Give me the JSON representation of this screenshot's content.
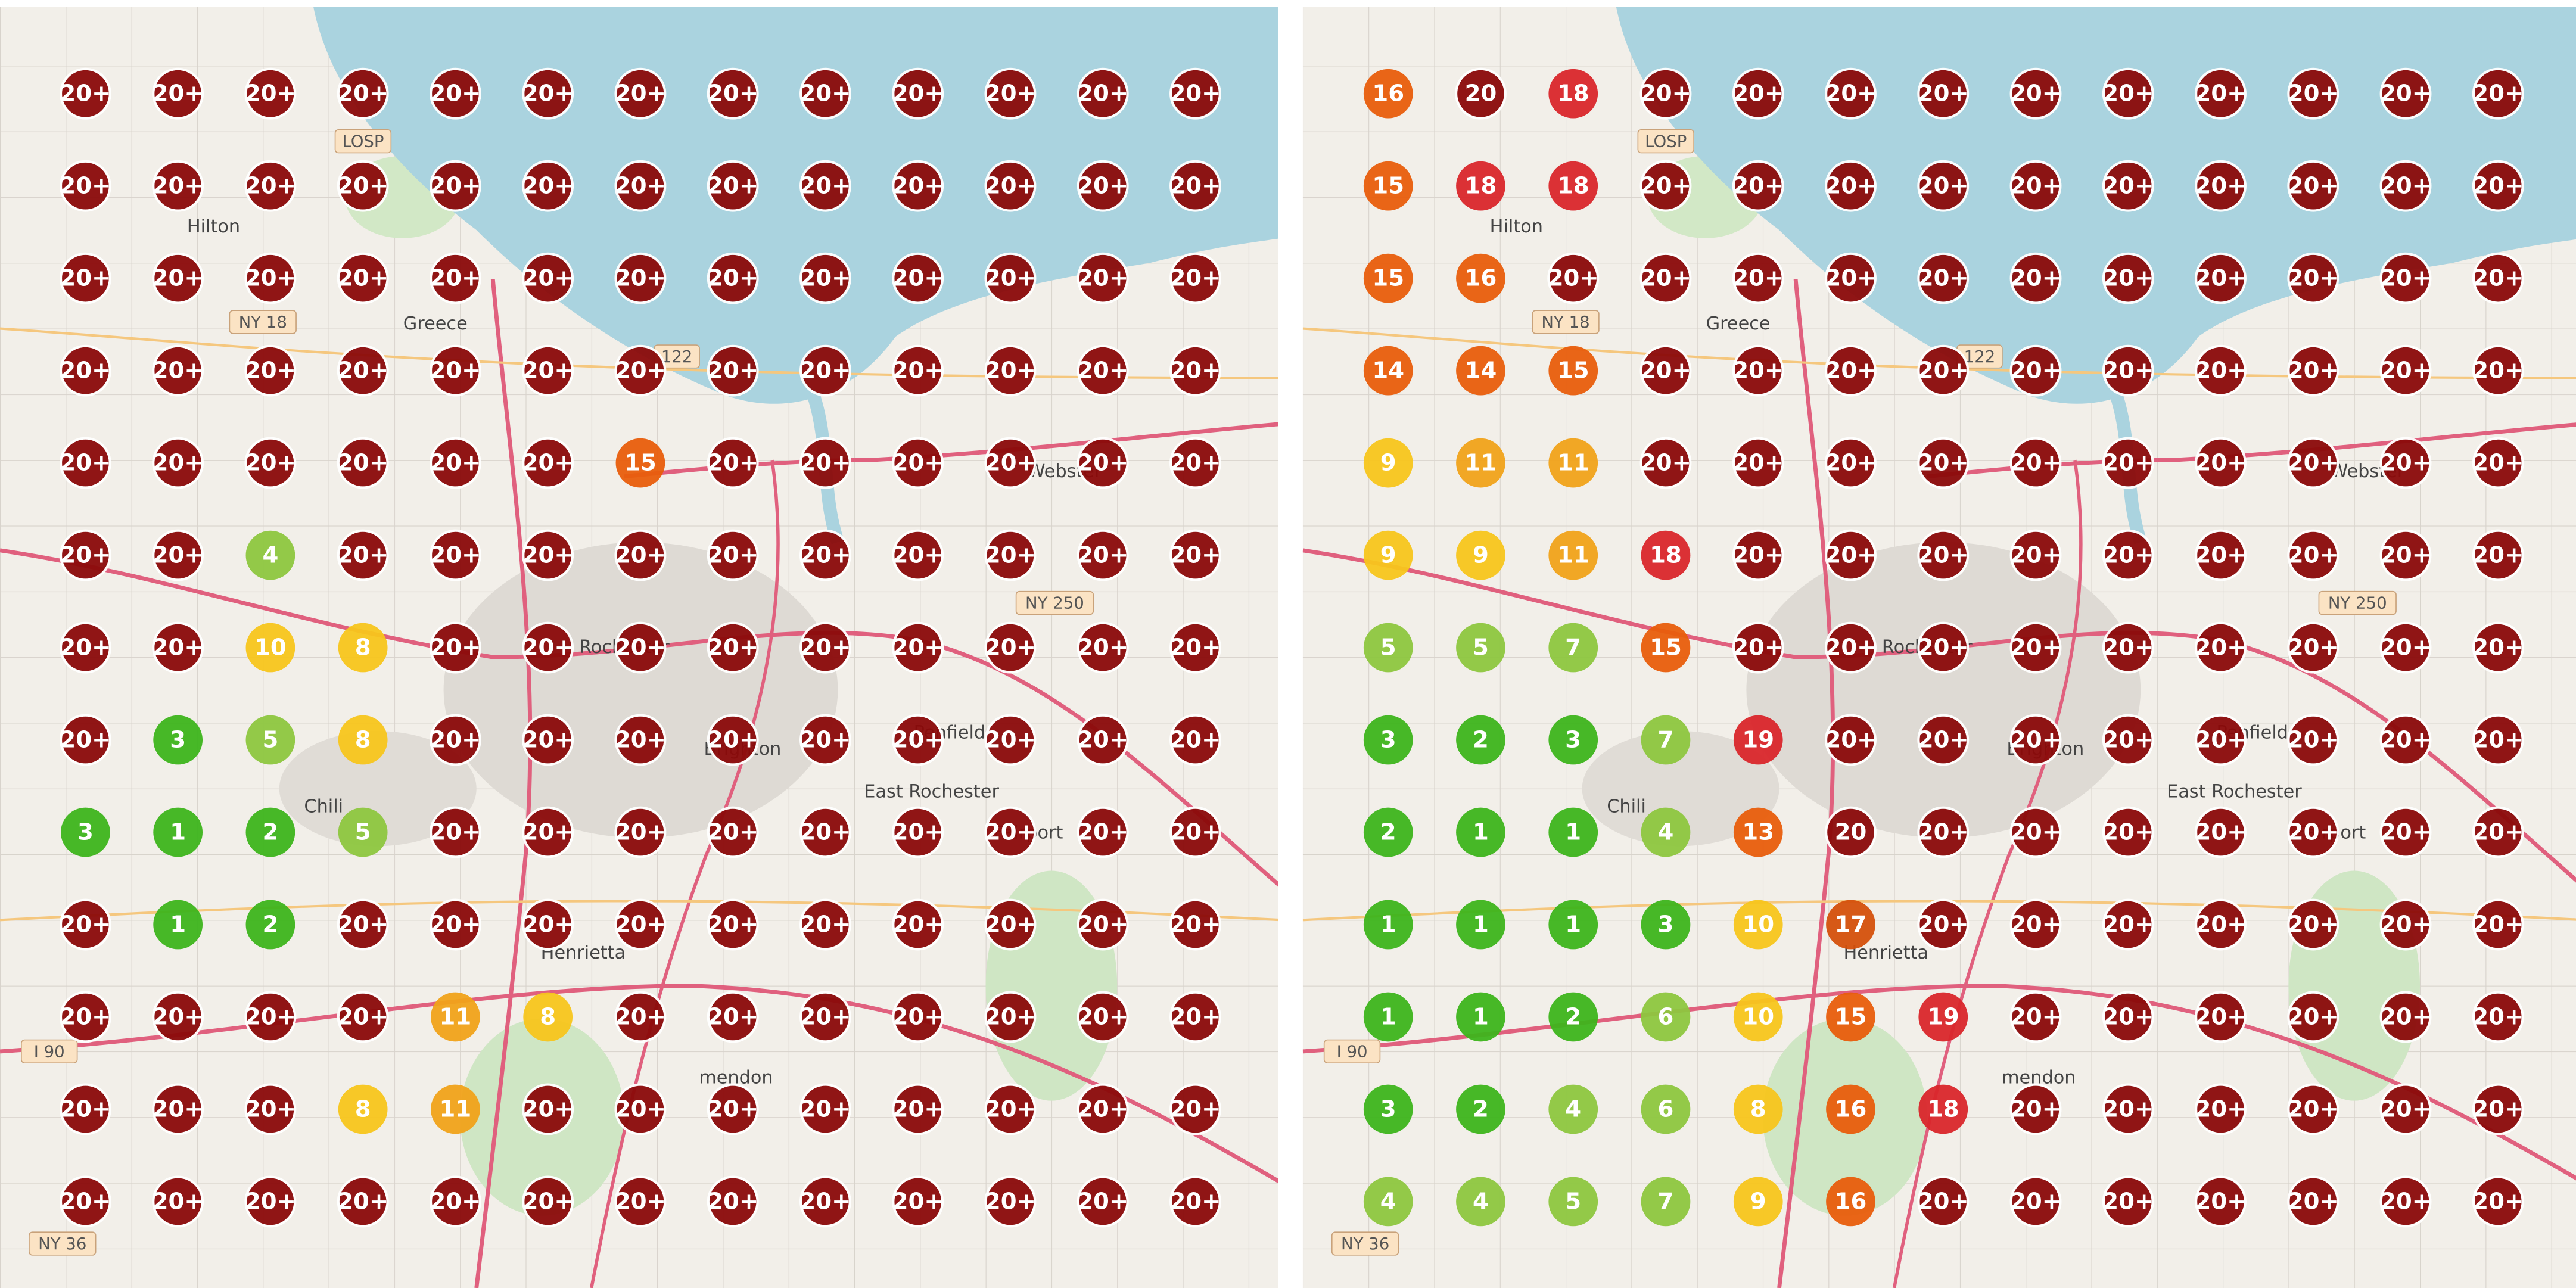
{
  "panels": [
    {
      "markers": [
        [
          "20+",
          "20+",
          "20+",
          "20+",
          "20+",
          "20+",
          "20+",
          "20+",
          "20+",
          "20+",
          "20+",
          "20+",
          "20+"
        ],
        [
          "20+",
          "20+",
          "20+",
          "20+",
          "20+",
          "20+",
          "20+",
          "20+",
          "20+",
          "20+",
          "20+",
          "20+",
          "20+"
        ],
        [
          "20+",
          "20+",
          "20+",
          "20+",
          "20+",
          "20+",
          "20+",
          "20+",
          "20+",
          "20+",
          "20+",
          "20+",
          "20+"
        ],
        [
          "20+",
          "20+",
          "20+",
          "20+",
          "20+",
          "20+",
          "20+",
          "20+",
          "20+",
          "20+",
          "20+",
          "20+",
          "20+"
        ],
        [
          "20+",
          "20+",
          "20+",
          "20+",
          "20+",
          "20+",
          "15",
          "20+",
          "20+",
          "20+",
          "20+",
          "20+",
          "20+"
        ],
        [
          "20+",
          "20+",
          "4",
          "20+",
          "20+",
          "20+",
          "20+",
          "20+",
          "20+",
          "20+",
          "20+",
          "20+",
          "20+"
        ],
        [
          "20+",
          "20+",
          "10",
          "8",
          "20+",
          "20+",
          "20+",
          "20+",
          "20+",
          "20+",
          "20+",
          "20+",
          "20+"
        ],
        [
          "20+",
          "3",
          "5",
          "8",
          "20+",
          "20+",
          "20+",
          "20+",
          "20+",
          "20+",
          "20+",
          "20+",
          "20+"
        ],
        [
          "3",
          "1",
          "2",
          "5",
          "20+",
          "20+",
          "20+",
          "20+",
          "20+",
          "20+",
          "20+",
          "20+",
          "20+"
        ],
        [
          "20+",
          "1",
          "2",
          "20+",
          "20+",
          "20+",
          "20+",
          "20+",
          "20+",
          "20+",
          "20+",
          "20+",
          "20+"
        ],
        [
          "20+",
          "20+",
          "20+",
          "20+",
          "11",
          "8",
          "20+",
          "20+",
          "20+",
          "20+",
          "20+",
          "20+",
          "20+"
        ],
        [
          "20+",
          "20+",
          "20+",
          "8",
          "11",
          "20+",
          "20+",
          "20+",
          "20+",
          "20+",
          "20+",
          "20+",
          "20+"
        ],
        [
          "20+",
          "20+",
          "20+",
          "20+",
          "20+",
          "20+",
          "20+",
          "20+",
          "20+",
          "20+",
          "20+",
          "20+",
          "20+"
        ]
      ]
    },
    {
      "markers": [
        [
          "16",
          "20",
          "18",
          "20+",
          "20+",
          "20+",
          "20+",
          "20+",
          "20+",
          "20+",
          "20+",
          "20+",
          "20+"
        ],
        [
          "15",
          "18",
          "18",
          "20+",
          "20+",
          "20+",
          "20+",
          "20+",
          "20+",
          "20+",
          "20+",
          "20+",
          "20+"
        ],
        [
          "15",
          "16",
          "20+",
          "20+",
          "20+",
          "20+",
          "20+",
          "20+",
          "20+",
          "20+",
          "20+",
          "20+",
          "20+"
        ],
        [
          "14",
          "14",
          "15",
          "20+",
          "20+",
          "20+",
          "20+",
          "20+",
          "20+",
          "20+",
          "20+",
          "20+",
          "20+"
        ],
        [
          "9",
          "11",
          "11",
          "20+",
          "20+",
          "20+",
          "20+",
          "20+",
          "20+",
          "20+",
          "20+",
          "20+",
          "20+"
        ],
        [
          "9",
          "9",
          "11",
          "18",
          "20+",
          "20+",
          "20+",
          "20+",
          "20+",
          "20+",
          "20+",
          "20+",
          "20+"
        ],
        [
          "5",
          "5",
          "7",
          "15",
          "20+",
          "20+",
          "20+",
          "20+",
          "20+",
          "20+",
          "20+",
          "20+",
          "20+"
        ],
        [
          "3",
          "2",
          "3",
          "7",
          "19",
          "20+",
          "20+",
          "20+",
          "20+",
          "20+",
          "20+",
          "20+",
          "20+"
        ],
        [
          "2",
          "1",
          "1",
          "4",
          "13",
          "20",
          "20+",
          "20+",
          "20+",
          "20+",
          "20+",
          "20+",
          "20+"
        ],
        [
          "1",
          "1",
          "1",
          "3",
          "10",
          "17",
          "20+",
          "20+",
          "20+",
          "20+",
          "20+",
          "20+",
          "20+"
        ],
        [
          "1",
          "1",
          "2",
          "6",
          "10",
          "15",
          "19",
          "20+",
          "20+",
          "20+",
          "20+",
          "20+",
          "20+"
        ],
        [
          "3",
          "2",
          "4",
          "6",
          "8",
          "16",
          "18",
          "20+",
          "20+",
          "20+",
          "20+",
          "20+",
          "20+"
        ],
        [
          "4",
          "4",
          "5",
          "7",
          "9",
          "16",
          "20+",
          "20+",
          "20+",
          "20+",
          "20+",
          "20+",
          "20+"
        ]
      ]
    }
  ],
  "map_labels": [
    "LOSP",
    "Hilton",
    "NY 18",
    "Greece",
    "122",
    "Webster",
    "NY 250",
    "Rochester",
    "Brighton",
    "Penfield",
    "East Rochester",
    "Chili",
    "Fairport",
    "Henrietta",
    "I 90",
    "mendon",
    "NY 36"
  ]
}
